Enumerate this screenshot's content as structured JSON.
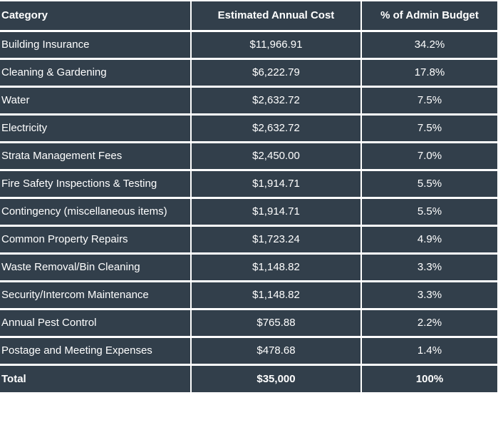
{
  "table": {
    "headers": [
      "Category",
      "Estimated Annual Cost",
      "% of Admin Budget"
    ],
    "rows": [
      {
        "category": "Building Insurance",
        "cost": "$11,966.91",
        "percent": "34.2%"
      },
      {
        "category": "Cleaning & Gardening",
        "cost": "$6,222.79",
        "percent": "17.8%"
      },
      {
        "category": "Water",
        "cost": "$2,632.72",
        "percent": "7.5%"
      },
      {
        "category": "Electricity",
        "cost": "$2,632.72",
        "percent": "7.5%"
      },
      {
        "category": "Strata Management Fees",
        "cost": "$2,450.00",
        "percent": "7.0%"
      },
      {
        "category": "Fire Safety Inspections & Testing",
        "cost": "$1,914.71",
        "percent": "5.5%"
      },
      {
        "category": "Contingency (miscellaneous items)",
        "cost": "$1,914.71",
        "percent": "5.5%"
      },
      {
        "category": "Common Property Repairs",
        "cost": "$1,723.24",
        "percent": "4.9%"
      },
      {
        "category": "Waste Removal/Bin Cleaning",
        "cost": "$1,148.82",
        "percent": "3.3%"
      },
      {
        "category": "Security/Intercom Maintenance",
        "cost": "$1,148.82",
        "percent": "3.3%"
      },
      {
        "category": "Annual Pest Control",
        "cost": "$765.88",
        "percent": "2.2%"
      },
      {
        "category": "Postage and Meeting Expenses",
        "cost": "$478.68",
        "percent": "1.4%"
      }
    ],
    "total": {
      "category": "Total",
      "cost": "$35,000",
      "percent": "100%"
    }
  },
  "colors": {
    "cell_background": "#323f4b",
    "text": "#ffffff",
    "grid": "#ffffff"
  }
}
